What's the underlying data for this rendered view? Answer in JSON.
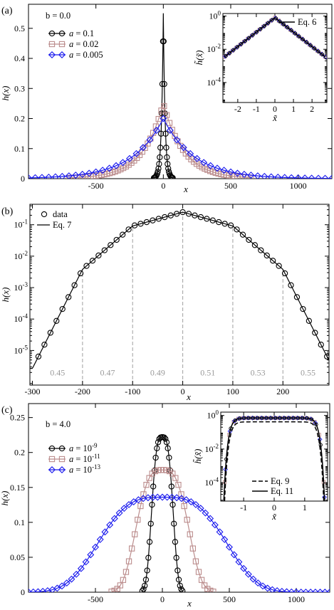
{
  "colors": {
    "black": "#000000",
    "pink": "#bb8c8c",
    "blue": "#1a1aee",
    "dashed_gray": "#a8a8a8",
    "region_text": "#9a9a9a"
  },
  "panels": [
    {
      "label": "(a)",
      "param_text": "b = 0.0",
      "chart_data": {
        "type": "line",
        "scale": "linear",
        "xlabel": "x",
        "ylabel": "h(x)",
        "xlim": [
          -1000,
          1250
        ],
        "ylim": [
          0,
          0.58
        ],
        "xticks": [
          -500,
          0,
          500,
          1000
        ],
        "yticks": [
          0,
          0.1,
          0.2,
          0.3,
          0.4,
          0.5
        ],
        "xtick_labels": [
          "-500",
          "0",
          "500",
          "1000"
        ],
        "ytick_labels": [
          "0",
          "0.1",
          "0.2",
          "0.3",
          "0.4",
          "0.5"
        ],
        "legend_position": "top-left",
        "series": [
          {
            "name": "a = 0.1",
            "marker": "circle",
            "color": "#000000",
            "peak": 0.55,
            "form": "exp_abs",
            "xmin": -70,
            "xmax": 70,
            "points": 30
          },
          {
            "name": "a = 0.02",
            "marker": "square",
            "color": "#bb8c8c",
            "peak": 0.25,
            "form": "exp_abs",
            "xmin": -700,
            "xmax": 650,
            "points": 68
          },
          {
            "name": "a = 0.005",
            "marker": "diamond",
            "color": "#1a1aee",
            "peak": 0.2,
            "form": "exp_abs",
            "xmin": -1000,
            "xmax": 1250,
            "points": 46
          }
        ],
        "inset": {
          "xlabel": "x̃",
          "ylabel": "h̃(x̃)",
          "xlim": [
            -2.8,
            2.8
          ],
          "ylim_log10": [
            -5.2,
            0.15
          ],
          "xticks": [
            -2,
            -1,
            0,
            1,
            2
          ],
          "xtick_labels": [
            "-2",
            "-1",
            "0",
            "1",
            "2"
          ],
          "yticks_exponents": [
            0,
            -2,
            -4
          ],
          "legend": "Eq. 6",
          "legend_position": "top-right",
          "curve": {
            "form": "exp_abs",
            "exponent_rate": 2,
            "peak_log10": -0.1,
            "xmin": -2.7,
            "xmax": 2.7
          }
        }
      }
    },
    {
      "label": "(b)",
      "chart_data": {
        "type": "line",
        "scale": "log",
        "xlabel": "x",
        "ylabel": "h(x)",
        "xlim": [
          -305,
          292
        ],
        "ylim_log10": [
          -6.1,
          -0.35
        ],
        "xticks": [
          -300,
          -200,
          -100,
          0,
          100,
          200
        ],
        "xtick_labels": [
          "-300",
          "-200",
          "-100",
          "0",
          "100",
          "200"
        ],
        "yticks_exponents": [
          -1,
          -2,
          -3,
          -4,
          -5
        ],
        "legend_position": "top-left",
        "series": [
          {
            "name": "data",
            "marker": "circle",
            "color": "#000000",
            "x_start": -288,
            "x_step": 12,
            "x_end": 288
          },
          {
            "name": "Eq. 7",
            "marker": "line",
            "color": "#000000"
          }
        ],
        "shape": {
          "center_log10": -0.6,
          "segments": [
            {
              "from": 0,
              "to": 100,
              "slope_log10_per_unit": 0.0044
            },
            {
              "from": 100,
              "to": 200,
              "slope_log10_per_unit": 0.0138
            },
            {
              "from": 200,
              "to": 300,
              "slope_log10_per_unit": 0.0315
            }
          ]
        },
        "region_boundaries": [
          -200,
          -100,
          0,
          100,
          200
        ],
        "region_labels": [
          {
            "text": "0.45",
            "x": -250
          },
          {
            "text": "0.47",
            "x": -150
          },
          {
            "text": "0.49",
            "x": -50
          },
          {
            "text": "0.51",
            "x": 50
          },
          {
            "text": "0.53",
            "x": 150
          },
          {
            "text": "0.55",
            "x": 250
          }
        ],
        "region_label_y_log10": -5.7
      }
    },
    {
      "label": "(c)",
      "param_text": "b = 4.0",
      "chart_data": {
        "type": "line",
        "scale": "linear",
        "xlabel": "x",
        "ylabel": "h(x)",
        "xlim": [
          -1000,
          1250
        ],
        "ylim": [
          0,
          0.27
        ],
        "xticks": [
          -500,
          0,
          500,
          1000
        ],
        "yticks": [
          0,
          0.05,
          0.1,
          0.15,
          0.2,
          0.25
        ],
        "xtick_labels": [
          "-500",
          "0",
          "500",
          "1000"
        ],
        "ytick_labels": [
          "0",
          "0.05",
          "0.1",
          "0.15",
          "0.2",
          "0.25"
        ],
        "legend_position": "top-left",
        "series": [
          {
            "name": "a = 10",
            "name_sup": "-9",
            "marker": "circle",
            "color": "#000000",
            "peak": 0.222,
            "form": "plateau",
            "halfwidth": 92,
            "power": 3.2,
            "xmin": -150,
            "xmax": 150,
            "points": 34
          },
          {
            "name": "a = 10",
            "name_sup": "-11",
            "marker": "square",
            "color": "#bb8c8c",
            "peak": 0.175,
            "form": "plateau",
            "halfwidth": 226,
            "power": 3.2,
            "xmin": -380,
            "xmax": 380,
            "points": 36
          },
          {
            "name": "a = 10",
            "name_sup": "-13",
            "marker": "diamond",
            "color": "#1a1aee",
            "peak": 0.136,
            "form": "plateau",
            "halfwidth": 548,
            "power": 3.2,
            "xmin": -1000,
            "xmax": 1250,
            "points": 64
          }
        ],
        "inset": {
          "xlabel": "x̃",
          "ylabel": "h̃(x̃)",
          "xlim": [
            -1.75,
            1.75
          ],
          "ylim_log10": [
            -5.1,
            0.2
          ],
          "xticks": [
            -1,
            0,
            1
          ],
          "xtick_labels": [
            "-1",
            "0",
            "1"
          ],
          "yticks_exponents": [
            0,
            -2,
            -4
          ],
          "legend": [
            "Eq. 9",
            "Eq. 11"
          ],
          "legend_position": "bottom-right",
          "curves": [
            {
              "name": "Eq. 9",
              "style": "dashed",
              "plateau_log10": -0.38,
              "edge": 1.58,
              "power": 14
            },
            {
              "name": "Eq. 11",
              "style": "solid",
              "plateau_log10": -0.15,
              "edge": 1.6,
              "power": 14
            }
          ]
        }
      }
    }
  ]
}
